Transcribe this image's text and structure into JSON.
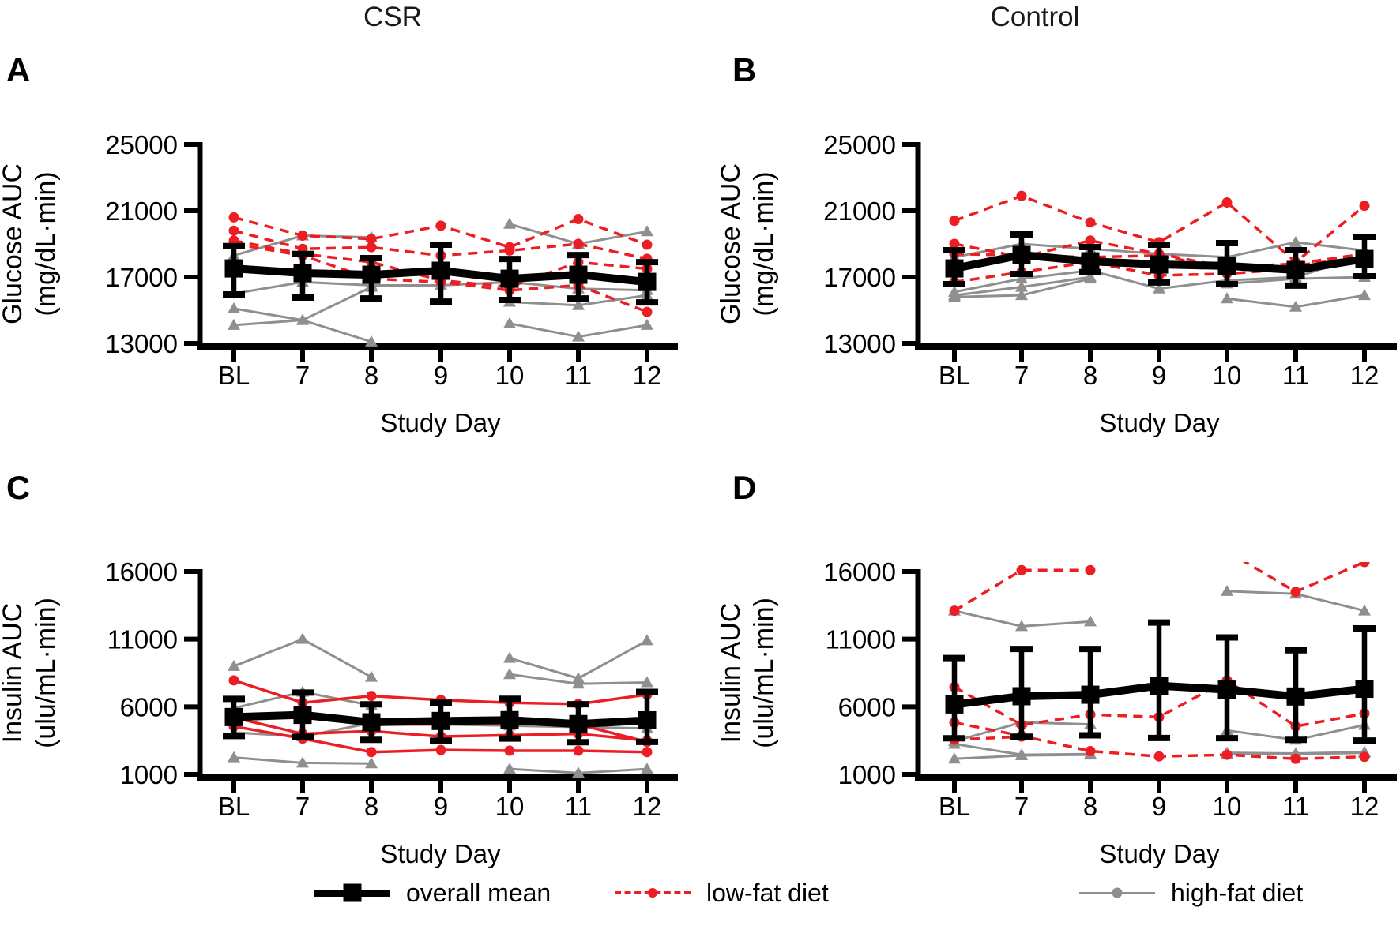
{
  "figure": {
    "group_titles": [
      {
        "text": "CSR"
      },
      {
        "text": "Control"
      }
    ],
    "legend": [
      {
        "label": "overall mean",
        "series": "mean",
        "marker": "black-square-on-thick-line"
      },
      {
        "label": "low-fat diet",
        "series": "low_fat",
        "marker": "red-dot-on-dashed-line"
      },
      {
        "label": "high-fat diet",
        "series": "high_fat",
        "marker": "gray-dot-on-line"
      }
    ],
    "colors": {
      "overall_mean": "#000000",
      "low_fat": "#EC1E24",
      "high_fat": "#8F8F8F"
    }
  },
  "chart_data": [
    {
      "id": "A",
      "group": "CSR",
      "type": "line",
      "row": 0,
      "col": 0,
      "ylabel": [
        "Glucose AUC",
        "(mg/dL·min)"
      ],
      "xlabel": "Study Day",
      "x_categories": [
        "BL",
        "7",
        "8",
        "9",
        "10",
        "11",
        "12"
      ],
      "ylim": [
        13000,
        25000
      ],
      "yticks": [
        13000,
        17000,
        21000,
        25000
      ],
      "grid": false,
      "legend_position": "bottom-shared",
      "mean": {
        "values": [
          17520,
          17240,
          17140,
          17380,
          16900,
          17140,
          16710
        ],
        "upper": [
          18870,
          18390,
          18140,
          18950,
          18090,
          18330,
          17900
        ],
        "lower": [
          15950,
          15760,
          15710,
          15520,
          15620,
          15710,
          15470
        ]
      },
      "low_fat": {
        "style": "dashed",
        "subjects": [
          [
            20600,
            19500,
            19300,
            20100,
            18800,
            20500,
            18950
          ],
          [
            19800,
            18700,
            18800,
            18300,
            18600,
            19000,
            18100
          ],
          [
            19200,
            18400,
            17900,
            16800,
            16400,
            17900,
            17500
          ],
          [
            19000,
            18300,
            16900,
            16700,
            16200,
            16500,
            14900
          ]
        ]
      },
      "high_fat": {
        "style": "solid",
        "subjects": [
          [
            18300,
            19500,
            19400,
            null,
            20200,
            19000,
            19750
          ],
          [
            16000,
            16700,
            16500,
            16500,
            16700,
            16300,
            16200
          ],
          [
            15100,
            14400,
            16400,
            null,
            15500,
            15300,
            15900
          ],
          [
            14100,
            14400,
            13100,
            null,
            14200,
            13400,
            14100
          ]
        ]
      }
    },
    {
      "id": "B",
      "group": "Control",
      "type": "line",
      "row": 0,
      "col": 1,
      "ylabel": [
        "Glucose AUC",
        "(mg/dL·min)"
      ],
      "xlabel": "Study Day",
      "x_categories": [
        "BL",
        "7",
        "8",
        "9",
        "10",
        "11",
        "12"
      ],
      "ylim": [
        13000,
        25000
      ],
      "yticks": [
        13000,
        17000,
        21000,
        25000
      ],
      "grid": false,
      "mean": {
        "values": [
          17520,
          18330,
          17950,
          17760,
          17670,
          17430,
          18090
        ],
        "upper": [
          18620,
          19570,
          18810,
          18950,
          19050,
          18620,
          19430
        ],
        "lower": [
          16570,
          17190,
          17300,
          16670,
          16570,
          16480,
          17050
        ]
      },
      "low_fat": {
        "style": "dashed",
        "subjects": [
          [
            20400,
            21900,
            20300,
            19100,
            21500,
            17900,
            21300
          ],
          [
            19000,
            18200,
            19200,
            18400,
            17600,
            17800,
            18400
          ],
          [
            18400,
            18300,
            18200,
            18300,
            17500,
            17700,
            18200
          ],
          [
            16700,
            17300,
            17900,
            17100,
            17200,
            17500,
            18000
          ]
        ]
      },
      "high_fat": {
        "style": "solid",
        "subjects": [
          [
            18200,
            19000,
            18700,
            18400,
            18200,
            19100,
            18600
          ],
          [
            16100,
            16900,
            17400,
            16300,
            16800,
            17000,
            18300
          ],
          [
            15900,
            16400,
            17000,
            null,
            16600,
            16900,
            17000
          ],
          [
            15800,
            15900,
            16900,
            null,
            15700,
            15200,
            15900
          ]
        ]
      }
    },
    {
      "id": "C",
      "group": "CSR",
      "type": "line",
      "row": 1,
      "col": 0,
      "ylabel": [
        "Insulin AUC",
        "(ulu/mL·min)"
      ],
      "xlabel": "Study Day",
      "x_categories": [
        "BL",
        "7",
        "8",
        "9",
        "10",
        "11",
        "12"
      ],
      "ylim": [
        1000,
        16000
      ],
      "yticks": [
        1000,
        6000,
        11000,
        16000
      ],
      "grid": false,
      "mean": {
        "values": [
          5240,
          5400,
          4850,
          4950,
          5010,
          4720,
          5000
        ],
        "upper": [
          6580,
          7050,
          6180,
          6300,
          6590,
          6190,
          7100
        ],
        "lower": [
          3840,
          3780,
          3550,
          3490,
          3650,
          3380,
          3400
        ]
      },
      "low_fat": {
        "style": "solid",
        "subjects": [
          [
            7950,
            6300,
            6800,
            6500,
            6300,
            6200,
            6900
          ],
          [
            5400,
            5200,
            4700,
            4700,
            4800,
            4700,
            3400
          ],
          [
            5200,
            4000,
            4200,
            3800,
            3900,
            4000,
            3500
          ],
          [
            4550,
            3650,
            2650,
            2800,
            2750,
            2750,
            2650
          ]
        ]
      },
      "high_fat": {
        "style": "solid",
        "subjects": [
          [
            9000,
            11000,
            8200,
            null,
            9600,
            8100,
            10900
          ],
          [
            5900,
            7100,
            6100,
            null,
            8400,
            7700,
            7800
          ],
          [
            4100,
            3800,
            4800,
            4700,
            4600,
            4500,
            4400
          ],
          [
            2250,
            1850,
            1800,
            null,
            1400,
            1100,
            1400
          ]
        ]
      }
    },
    {
      "id": "D",
      "group": "Control",
      "type": "line",
      "row": 1,
      "col": 1,
      "ylabel": [
        "Insulin AUC",
        "(ulu/mL·min)"
      ],
      "xlabel": "Study Day",
      "x_categories": [
        "BL",
        "7",
        "8",
        "9",
        "10",
        "11",
        "12"
      ],
      "ylim": [
        1000,
        16000
      ],
      "yticks": [
        1000,
        6000,
        11000,
        16000
      ],
      "grid": false,
      "mean": {
        "values": [
          6170,
          6780,
          6890,
          7560,
          7270,
          6760,
          7330
        ],
        "upper": [
          9600,
          10270,
          10270,
          12230,
          11130,
          10180,
          11800
        ],
        "lower": [
          3670,
          3790,
          3890,
          3690,
          3680,
          3550,
          3500
        ]
      },
      "low_fat": {
        "style": "dashed",
        "subjects": [
          [
            13100,
            16100,
            16100,
            null,
            17500,
            14500,
            16700
          ],
          [
            7460,
            4660,
            5420,
            5240,
            7950,
            4550,
            5500
          ],
          [
            4830,
            3850,
            2720,
            2330,
            2450,
            2150,
            2300
          ],
          [
            3560,
            3790,
            null,
            null,
            null,
            null,
            null
          ]
        ]
      },
      "high_fat": {
        "style": "solid",
        "subjects": [
          [
            13100,
            11950,
            12300,
            null,
            null,
            null,
            null
          ],
          [
            null,
            null,
            null,
            null,
            14550,
            14350,
            13100
          ],
          [
            3450,
            4850,
            4700,
            null,
            4250,
            3550,
            4650
          ],
          [
            3250,
            2450,
            2500,
            null,
            2600,
            2550,
            2650
          ],
          [
            2150,
            2400,
            2450,
            null,
            2500,
            2500,
            2600
          ]
        ]
      }
    }
  ]
}
